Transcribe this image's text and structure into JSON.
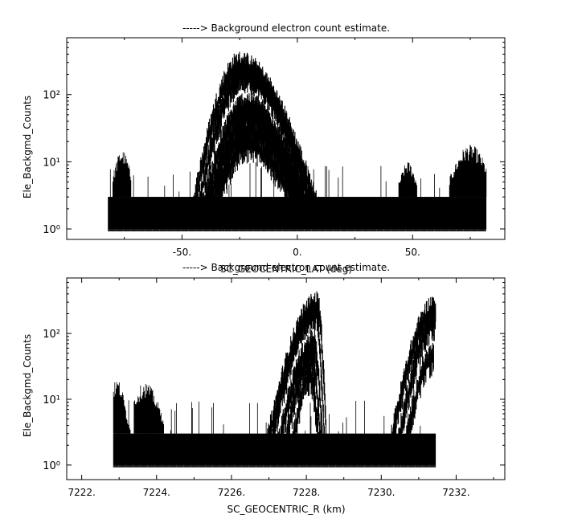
{
  "chart_data": [
    {
      "type": "scatter",
      "title": "-----> Background electron count estimate.",
      "xlabel": "SC_GEOCENTRIC_LAT (deg)",
      "ylabel": "Ele_Backgmd_Counts",
      "xscale": "linear",
      "yscale": "log",
      "xlim": [
        -100,
        90
      ],
      "ylim": [
        0.7,
        700
      ],
      "xticks": [
        -50,
        0,
        50
      ],
      "xtick_labels": [
        "-50.",
        "0.",
        "50."
      ],
      "yticks": [
        1,
        10,
        100
      ],
      "ytick_labels": [
        "10⁰",
        "10¹",
        "10²"
      ],
      "grid": false,
      "legend": "none",
      "color": "#000000",
      "data_range_x": [
        -82,
        82
      ],
      "noise_floor": {
        "min": 1,
        "max": 3,
        "occasional_max": 10
      },
      "passes": [
        {
          "x_start": -46,
          "x_end": 10,
          "x_peak": -25,
          "peak": 350
        },
        {
          "x_start": -44,
          "x_end": 8,
          "x_peak": -23,
          "peak": 280
        },
        {
          "x_start": -42,
          "x_end": 6,
          "x_peak": -22,
          "peak": 90
        },
        {
          "x_start": -40,
          "x_end": 5,
          "x_peak": -21,
          "peak": 65
        },
        {
          "x_start": -38,
          "x_end": 4,
          "x_peak": -21,
          "peak": 40
        },
        {
          "x_start": -36,
          "x_end": 2,
          "x_peak": -22,
          "peak": 25
        }
      ],
      "bumps": [
        {
          "x_start": 66,
          "x_end": 82,
          "x_peak": 75,
          "peak": 18
        },
        {
          "x_start": 44,
          "x_end": 52,
          "x_peak": 48,
          "peak": 10
        },
        {
          "x_start": -80,
          "x_end": -72,
          "x_peak": -76,
          "peak": 15
        }
      ]
    },
    {
      "type": "scatter",
      "title": "-----> Background electron count estimate.",
      "xlabel": "SC_GEOCENTRIC_R (km)",
      "ylabel": "Ele_Backgmd_Counts",
      "xscale": "linear",
      "yscale": "log",
      "xlim": [
        7221.6,
        7233.3
      ],
      "ylim": [
        0.6,
        700
      ],
      "xticks": [
        7222,
        7224,
        7226,
        7228,
        7230,
        7232
      ],
      "xtick_labels": [
        "7222.",
        "7224.",
        "7226.",
        "7228.",
        "7230.",
        "7232."
      ],
      "yticks": [
        1,
        10,
        100
      ],
      "ytick_labels": [
        "10⁰",
        "10¹",
        "10²"
      ],
      "grid": false,
      "legend": "none",
      "color": "#000000",
      "data_range_x": [
        7222.85,
        7231.45
      ],
      "noise_floor": {
        "min": 1,
        "max": 3,
        "occasional_max": 10
      },
      "passes": [
        {
          "x_start": 7226.9,
          "x_end": 7228.55,
          "x_peak": 7228.3,
          "peak": 350
        },
        {
          "x_start": 7227.0,
          "x_end": 7228.5,
          "x_peak": 7228.25,
          "peak": 280
        },
        {
          "x_start": 7227.2,
          "x_end": 7228.45,
          "x_peak": 7228.2,
          "peak": 90
        },
        {
          "x_start": 7227.4,
          "x_end": 7228.4,
          "x_peak": 7228.15,
          "peak": 60
        },
        {
          "x_start": 7227.6,
          "x_end": 7228.35,
          "x_peak": 7228.1,
          "peak": 30
        },
        {
          "x_start": 7230.2,
          "x_end": 7231.45,
          "x_peak": 7231.45,
          "peak": 320
        },
        {
          "x_start": 7230.4,
          "x_end": 7231.45,
          "x_peak": 7231.45,
          "peak": 200
        },
        {
          "x_start": 7230.6,
          "x_end": 7231.4,
          "x_peak": 7231.4,
          "peak": 60
        }
      ],
      "bumps": [
        {
          "x_start": 7222.85,
          "x_end": 7223.3,
          "x_peak": 7222.95,
          "peak": 20
        },
        {
          "x_start": 7223.4,
          "x_end": 7224.2,
          "x_peak": 7223.7,
          "peak": 18
        }
      ]
    }
  ]
}
